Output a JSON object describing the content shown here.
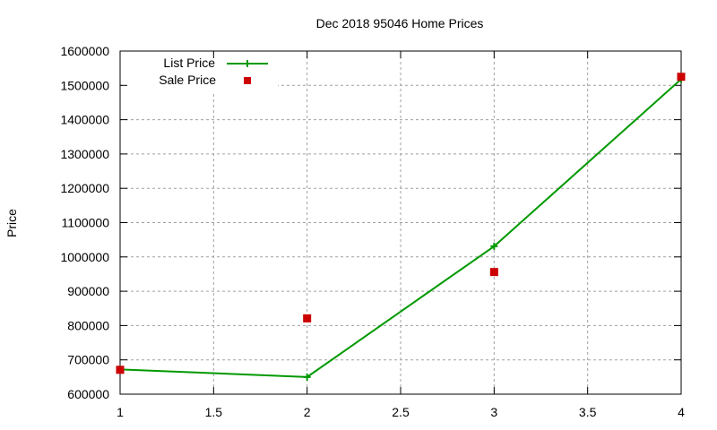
{
  "chart_data": {
    "type": "line",
    "title": "Dec 2018 95046 Home Prices",
    "xlabel": "",
    "ylabel": "Price",
    "xlim": [
      1,
      4
    ],
    "ylim": [
      600000,
      1600000
    ],
    "x_ticks": [
      "1",
      "1.5",
      "2",
      "2.5",
      "3",
      "3.5",
      "4"
    ],
    "y_ticks": [
      "600000",
      "700000",
      "800000",
      "900000",
      "1000000",
      "1100000",
      "1200000",
      "1300000",
      "1400000",
      "1500000",
      "1600000"
    ],
    "grid": true,
    "legend_position": "top-left",
    "series": [
      {
        "name": "List Price",
        "style": "linespoints",
        "marker": "plus",
        "color": "#009900",
        "x": [
          1,
          2,
          3,
          4
        ],
        "values": [
          672000,
          650000,
          1031000,
          1518000
        ]
      },
      {
        "name": "Sale Price",
        "style": "points",
        "marker": "square",
        "color": "#cc0000",
        "x": [
          1,
          2,
          3,
          4
        ],
        "values": [
          671000,
          821000,
          956000,
          1525000
        ]
      }
    ]
  }
}
